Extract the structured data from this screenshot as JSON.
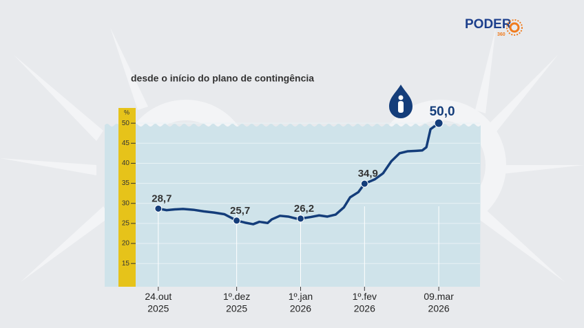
{
  "brand": {
    "name": "PODER",
    "sub": "360"
  },
  "chart_data": {
    "type": "line",
    "title": "desde o início do plano de contingência",
    "y_unit": "%",
    "x": [
      "2025-10-24",
      "2025-10-28",
      "2025-11-01",
      "2025-11-05",
      "2025-11-10",
      "2025-11-15",
      "2025-11-20",
      "2025-11-25",
      "2025-12-01",
      "2025-12-05",
      "2025-12-09",
      "2025-12-12",
      "2025-12-16",
      "2025-12-18",
      "2025-12-22",
      "2025-12-26",
      "2025-12-30",
      "2026-01-01",
      "2026-01-06",
      "2026-01-10",
      "2026-01-14",
      "2026-01-18",
      "2026-01-22",
      "2026-01-25",
      "2026-01-29",
      "2026-02-01",
      "2026-02-06",
      "2026-02-10",
      "2026-02-14",
      "2026-02-18",
      "2026-02-22",
      "2026-02-26",
      "2026-03-01",
      "2026-03-03",
      "2026-03-05",
      "2026-03-09"
    ],
    "series": [
      {
        "color": "#143d7a",
        "values": [
          28.7,
          28.3,
          28.5,
          28.6,
          28.4,
          28.0,
          27.7,
          27.3,
          25.7,
          25.2,
          24.8,
          25.4,
          25.1,
          26.0,
          26.9,
          26.7,
          26.2,
          26.2,
          26.6,
          27.0,
          26.7,
          27.2,
          29.0,
          31.5,
          32.8,
          34.9,
          36.0,
          37.5,
          40.5,
          42.5,
          43.0,
          43.1,
          43.2,
          44.0,
          48.5,
          50.0
        ]
      }
    ],
    "highlights": {
      "x": [
        "2025-10-24",
        "2025-12-01",
        "2026-01-01",
        "2026-02-01",
        "2026-03-09"
      ],
      "values": [
        28.7,
        25.7,
        26.2,
        34.9,
        50.0
      ],
      "value_labels": [
        "28,7",
        "25,7",
        "26,2",
        "34,9",
        "50,0"
      ]
    },
    "xlim": [
      "2025-09-28",
      "2026-03-29"
    ],
    "xticks": [
      {
        "value": "2025-10-24",
        "label": "24.out\n2025"
      },
      {
        "value": "2025-12-01",
        "label": "1º.dez\n2025"
      },
      {
        "value": "2026-01-01",
        "label": "1º.jan\n2026"
      },
      {
        "value": "2026-02-01",
        "label": "1º.fev\n2026"
      },
      {
        "value": "2026-03-09",
        "label": "09.mar\n2026"
      }
    ],
    "ylim": [
      9.2,
      53.8
    ],
    "yticks": [
      15,
      20,
      25,
      30,
      35,
      40,
      45,
      50
    ]
  }
}
